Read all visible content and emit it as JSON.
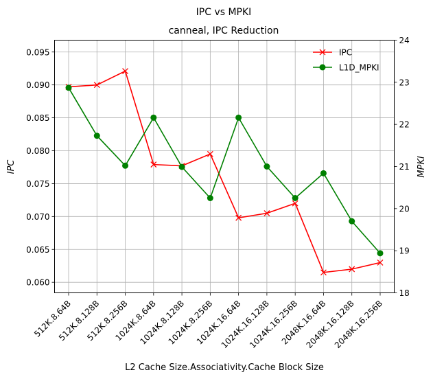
{
  "chart_data": {
    "type": "line",
    "title": "IPC vs MPKI",
    "subtitle": "canneal, IPC Reduction",
    "xlabel": "L2 Cache Size.Associativity.Cache Block Size",
    "ylabel": "IPC",
    "y2label": "MPKI",
    "categories": [
      "512K.8.64B",
      "512K.8.128B",
      "512K.8.256B",
      "1024K.8.64B",
      "1024K.8.128B",
      "1024K.8.256B",
      "1024K.16.64B",
      "1024K.16.128B",
      "1024K.16.256B",
      "2048K.16.64B",
      "2048K.16.128B",
      "2048K.16.256B"
    ],
    "ylim": [
      0.0584,
      0.0968
    ],
    "y2lim": [
      18,
      24
    ],
    "yticks": [
      "0.060",
      "0.065",
      "0.070",
      "0.075",
      "0.080",
      "0.085",
      "0.090",
      "0.095"
    ],
    "y2ticks": [
      "18",
      "19",
      "20",
      "21",
      "22",
      "23",
      "24"
    ],
    "grid": true,
    "legend_position": "top-right",
    "series": [
      {
        "name": "IPC",
        "axis": "left",
        "color": "#ff0000",
        "marker": "x",
        "values": [
          0.0897,
          0.09,
          0.0921,
          0.0779,
          0.0777,
          0.0795,
          0.0698,
          0.0705,
          0.072,
          0.0615,
          0.062,
          0.063
        ]
      },
      {
        "name": "L1D_MPKI",
        "axis": "right",
        "color": "#008000",
        "marker": "o",
        "values": [
          22.87,
          21.73,
          21.02,
          22.16,
          20.99,
          20.25,
          22.16,
          21.0,
          20.25,
          20.84,
          19.7,
          18.94
        ]
      }
    ]
  }
}
